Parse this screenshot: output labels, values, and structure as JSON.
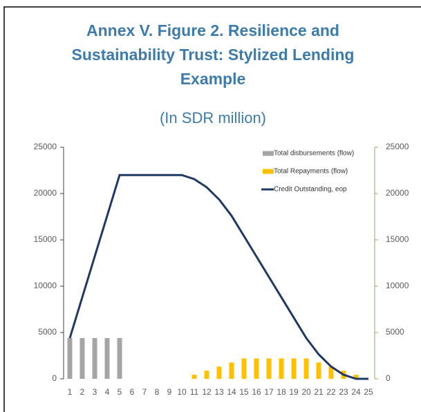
{
  "chart_data": {
    "type": "bar_line",
    "title": [
      "Annex V. Figure 2. Resilience and",
      "Sustainability Trust: Stylized Lending",
      "Example"
    ],
    "subtitle": "(In SDR million)",
    "categories": [
      "1",
      "2",
      "3",
      "4",
      "5",
      "6",
      "7",
      "8",
      "9",
      "10",
      "11",
      "12",
      "13",
      "14",
      "15",
      "16",
      "17",
      "18",
      "19",
      "20",
      "21",
      "22",
      "23",
      "24",
      "25"
    ],
    "series": [
      {
        "name": "Total disbursements (flow)",
        "kind": "bar",
        "color": "#a5a5a5",
        "values": [
          4400,
          4400,
          4400,
          4400,
          4400,
          0,
          0,
          0,
          0,
          0,
          0,
          0,
          0,
          0,
          0,
          0,
          0,
          0,
          0,
          0,
          0,
          0,
          0,
          0,
          0
        ]
      },
      {
        "name": "Total Repayments (flow)",
        "kind": "bar",
        "color": "#ffc000",
        "values": [
          0,
          0,
          0,
          0,
          0,
          0,
          0,
          0,
          0,
          0,
          440,
          880,
          1320,
          1760,
          2200,
          2200,
          2200,
          2200,
          2200,
          2200,
          1760,
          1320,
          880,
          440,
          0
        ]
      },
      {
        "name": "Credit Outstanding, eop",
        "kind": "line",
        "color": "#1f3864",
        "values": [
          4400,
          8800,
          13200,
          17600,
          22000,
          22000,
          22000,
          22000,
          22000,
          22000,
          21560,
          20680,
          19360,
          17600,
          15400,
          13200,
          11000,
          8800,
          6600,
          4400,
          2640,
          1320,
          440,
          0,
          0
        ]
      }
    ],
    "ylim": [
      0,
      25000
    ],
    "yticks": [
      0,
      5000,
      10000,
      15000,
      20000,
      25000
    ],
    "y2lim": [
      0,
      25000
    ],
    "y2ticks": [
      0,
      5000,
      10000,
      15000,
      20000,
      25000
    ],
    "legend": "top-right"
  }
}
